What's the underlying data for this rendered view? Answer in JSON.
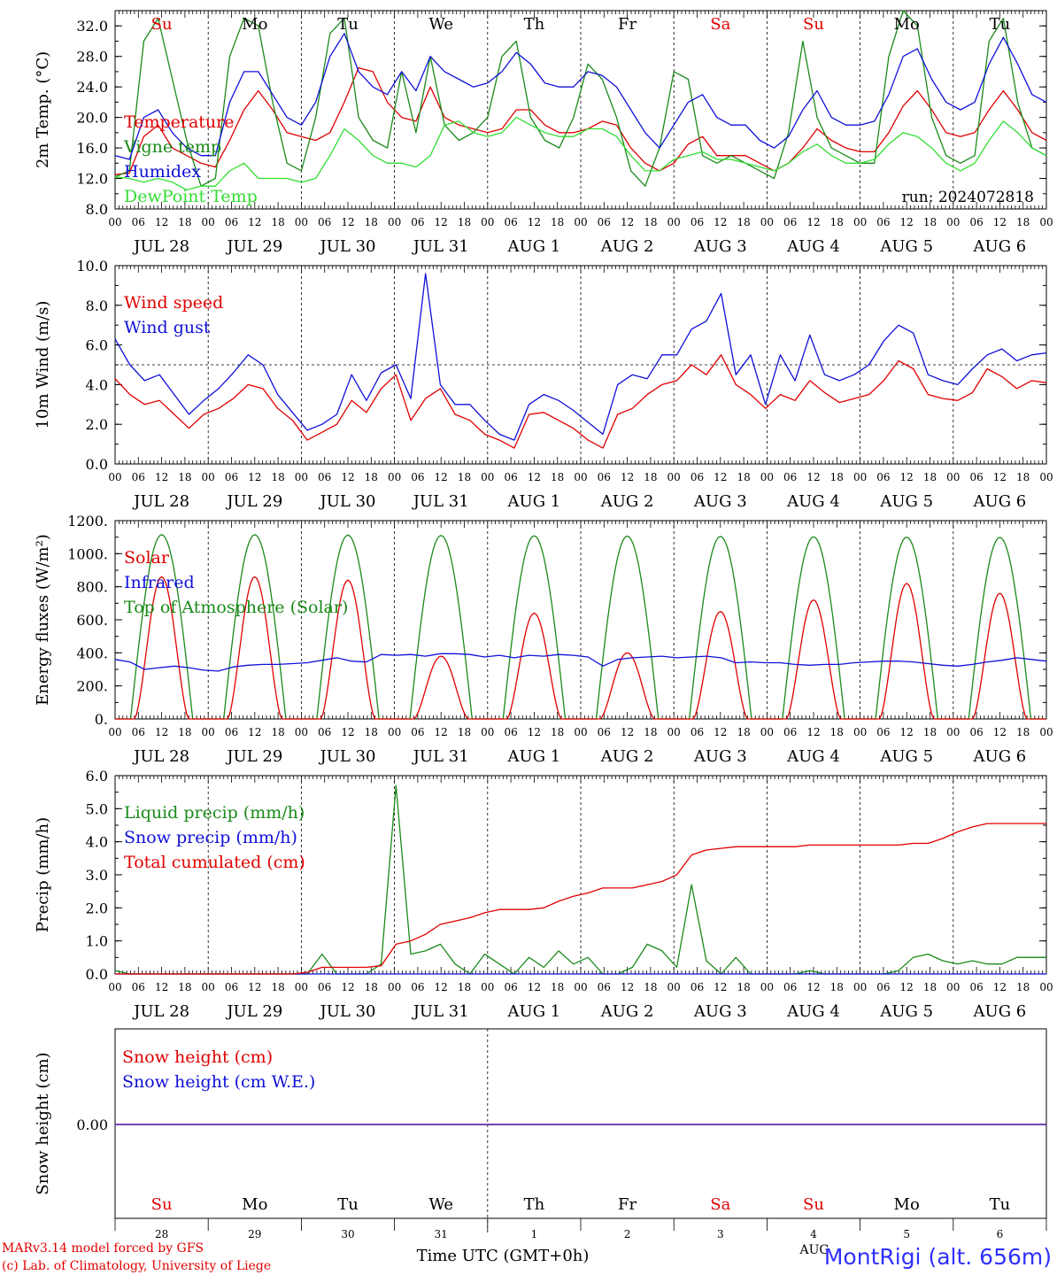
{
  "run_label": "run: 2024072818",
  "x_axis_title": "Time UTC (GMT+0h)",
  "hour_tick_labels": [
    "00",
    "06",
    "12",
    "18"
  ],
  "final_hour_label": "00",
  "date_labels": [
    "JUL 28",
    "JUL 29",
    "JUL 30",
    "JUL 31",
    "AUG  1",
    "AUG  2",
    "AUG  3",
    "AUG  4",
    "AUG  5",
    "AUG  6"
  ],
  "weekdays": [
    {
      "label": "Su",
      "color": "#e00000"
    },
    {
      "label": "Mo",
      "color": "#000000"
    },
    {
      "label": "Tu",
      "color": "#000000"
    },
    {
      "label": "We",
      "color": "#000000"
    },
    {
      "label": "Th",
      "color": "#000000"
    },
    {
      "label": "Fr",
      "color": "#000000"
    },
    {
      "label": "Sa",
      "color": "#e00000"
    },
    {
      "label": "Su",
      "color": "#e00000"
    },
    {
      "label": "Mo",
      "color": "#000000"
    },
    {
      "label": "Tu",
      "color": "#000000"
    }
  ],
  "day_numbers": [
    "28",
    "29",
    "30",
    "31",
    "1",
    "2",
    "3",
    "4",
    "5",
    "6"
  ],
  "bottom_month_label": "AUG",
  "footer": {
    "credit_line1": "MARv3.14 model forced by GFS",
    "credit_line2": "(c) Lab. of Climatology, University of Liege",
    "station": "MontRigi (alt. 656m)"
  },
  "colors": {
    "red": "#e00000",
    "darkgreen": "#1a8a1a",
    "blue": "#1010d8",
    "lightgreen": "#33dd33",
    "purple": "#7a2a9a",
    "station": "#3030ff"
  },
  "chart_data": [
    {
      "type": "line",
      "ylabel": "2m Temp. (°C)",
      "ylim": [
        8,
        34
      ],
      "yticks": [
        "8.0",
        "12.0",
        "16.0",
        "20.0",
        "24.0",
        "28.0",
        "32.0"
      ],
      "ytick_values": [
        8,
        12,
        16,
        20,
        24,
        28,
        32
      ],
      "x": "hours since JUL 28 00 UTC, every 6 h",
      "legend": [
        "Temperature",
        "Vigne temp",
        "Humidex",
        "DewPoint Temp"
      ],
      "series": [
        {
          "name": "Temperature",
          "color": "red",
          "values": [
            12.5,
            12.7,
            17.5,
            19,
            16,
            15,
            14,
            13.5,
            17,
            21,
            23.5,
            21,
            18,
            17.5,
            17,
            18,
            22,
            26.5,
            26,
            22,
            20,
            19.5,
            24,
            20,
            19,
            18.5,
            18,
            18.5,
            21,
            21,
            19,
            18,
            18,
            18.5,
            19.5,
            19,
            16,
            14,
            13,
            14,
            16.5,
            17.5,
            15,
            15,
            15,
            14,
            13,
            14,
            16,
            18.5,
            17,
            16,
            15.5,
            15.5,
            18,
            21.5,
            23.5,
            21,
            18,
            17.5,
            18,
            21,
            23.5,
            21,
            18,
            17
          ]
        },
        {
          "name": "Vigne temp",
          "color": "darkgreen",
          "values": [
            12.2,
            13,
            30,
            33,
            25,
            17,
            11,
            12,
            28,
            33,
            32,
            22,
            14,
            13,
            20,
            31,
            33,
            20,
            17,
            16,
            26,
            18,
            28,
            19,
            17,
            18,
            20,
            28,
            30,
            20,
            17,
            16,
            20,
            27,
            25,
            20,
            13,
            11,
            16,
            26,
            25,
            15,
            14,
            15,
            14,
            13,
            12,
            18,
            30,
            20,
            16,
            15,
            14,
            14,
            28,
            34,
            32,
            20,
            15,
            14,
            15,
            30,
            33,
            22,
            16,
            15
          ]
        },
        {
          "name": "Humidex",
          "color": "blue",
          "values": [
            15,
            14.5,
            20,
            21,
            18,
            16,
            15,
            15,
            22,
            26,
            26,
            23,
            20,
            19,
            22,
            28,
            31,
            26,
            24,
            23,
            26,
            23.5,
            28,
            26,
            25,
            24,
            24.5,
            26,
            28.5,
            27,
            24.5,
            24,
            24,
            26,
            25.5,
            24,
            21,
            18,
            16,
            19,
            22,
            23,
            20,
            19,
            19,
            17,
            16,
            17.5,
            21,
            23.5,
            20,
            19,
            19,
            19.5,
            23,
            28,
            29,
            25,
            22,
            21,
            22,
            27,
            30.5,
            27,
            23,
            22
          ]
        },
        {
          "name": "DewPoint Temp",
          "color": "lightgreen",
          "values": [
            12.2,
            12,
            11.5,
            12,
            11.5,
            10.5,
            11,
            11,
            13,
            14,
            12,
            12,
            12,
            11.5,
            12,
            15,
            18.5,
            17,
            15,
            14,
            14,
            13.5,
            15,
            19,
            19.5,
            18,
            17.5,
            18,
            20,
            19,
            18,
            17.5,
            17.5,
            18.5,
            18.5,
            17.5,
            15,
            13,
            13,
            14.5,
            15,
            15.5,
            14.5,
            14.5,
            14,
            13.5,
            13,
            14,
            15.5,
            16.5,
            15,
            14,
            14,
            14.5,
            16.5,
            18,
            17.5,
            16,
            14,
            13,
            14,
            17,
            19.5,
            18,
            16,
            15
          ]
        }
      ]
    },
    {
      "type": "line",
      "ylabel": "10m Wind (m/s)",
      "ylim": [
        0,
        10
      ],
      "yticks": [
        "0.0",
        "2.0",
        "4.0",
        "6.0",
        "8.0",
        "10.0"
      ],
      "ytick_values": [
        0,
        2,
        4,
        6,
        8,
        10
      ],
      "reference_line": 5,
      "legend": [
        "Wind speed",
        "Wind gust"
      ],
      "series": [
        {
          "name": "Wind speed",
          "color": "red",
          "values": [
            4.3,
            3.5,
            3,
            3.2,
            2.5,
            1.8,
            2.5,
            2.8,
            3.3,
            4,
            3.8,
            2.8,
            2.2,
            1.2,
            1.6,
            2,
            3.2,
            2.6,
            3.8,
            4.5,
            2.2,
            3.3,
            3.8,
            2.5,
            2.2,
            1.5,
            1.2,
            0.8,
            2.5,
            2.6,
            2.2,
            1.8,
            1.2,
            0.8,
            2.5,
            2.8,
            3.5,
            4,
            4.2,
            5,
            4.5,
            5.5,
            4,
            3.5,
            2.8,
            3.5,
            3.2,
            4.2,
            3.6,
            3.1,
            3.3,
            3.5,
            4.2,
            5.2,
            4.8,
            3.5,
            3.3,
            3.2,
            3.6,
            4.8,
            4.4,
            3.8,
            4.2,
            4.1
          ]
        },
        {
          "name": "Wind gust",
          "color": "blue",
          "values": [
            6.3,
            5,
            4.2,
            4.5,
            3.5,
            2.5,
            3.2,
            3.8,
            4.6,
            5.5,
            5,
            3.5,
            2.6,
            1.7,
            2,
            2.5,
            4.5,
            3.2,
            4.6,
            5,
            3.3,
            9.6,
            4,
            3,
            3,
            2.2,
            1.5,
            1.2,
            3,
            3.5,
            3.2,
            2.7,
            2.1,
            1.5,
            4,
            4.5,
            4.3,
            5.5,
            5.5,
            6.8,
            7.2,
            8.6,
            4.5,
            5.5,
            3,
            5.5,
            4.2,
            6.5,
            4.5,
            4.2,
            4.5,
            5,
            6.2,
            7,
            6.6,
            4.5,
            4.2,
            4,
            4.8,
            5.5,
            5.8,
            5.2,
            5.5,
            5.6
          ]
        }
      ]
    },
    {
      "type": "line",
      "ylabel": "Energy fluxes (W/m²)",
      "ylim": [
        0,
        1200
      ],
      "yticks": [
        "0.",
        "200.",
        "400.",
        "600.",
        "800.",
        "1000.",
        "1200."
      ],
      "ytick_values": [
        0,
        200,
        400,
        600,
        800,
        1000,
        1200
      ],
      "legend": [
        "Solar",
        "Infrared",
        "Top of Atmosphere (Solar)"
      ],
      "daily_peaks": {
        "Top of Atmosphere (Solar)": [
          1115,
          1115,
          1112,
          1110,
          1108,
          1106,
          1104,
          1102,
          1100,
          1098
        ],
        "Solar": [
          860,
          860,
          840,
          380,
          640,
          400,
          650,
          720,
          820,
          760
        ]
      },
      "series": [
        {
          "name": "Solar",
          "color": "red"
        },
        {
          "name": "Infrared",
          "color": "blue",
          "values": [
            360,
            345,
            300,
            310,
            320,
            310,
            295,
            290,
            315,
            325,
            330,
            330,
            335,
            340,
            355,
            370,
            350,
            345,
            390,
            385,
            390,
            380,
            395,
            395,
            390,
            375,
            385,
            370,
            385,
            380,
            390,
            385,
            375,
            320,
            360,
            370,
            375,
            380,
            370,
            375,
            380,
            370,
            340,
            345,
            340,
            340,
            330,
            325,
            330,
            330,
            340,
            345,
            350,
            350,
            345,
            335,
            325,
            320,
            330,
            345,
            355,
            370,
            360,
            350
          ]
        },
        {
          "name": "Top of Atmosphere (Solar)",
          "color": "darkgreen"
        }
      ]
    },
    {
      "type": "line",
      "ylabel": "Precip (mm/h)",
      "ylim": [
        0,
        6
      ],
      "yticks": [
        "0.0",
        "1.0",
        "2.0",
        "3.0",
        "4.0",
        "5.0",
        "6.0"
      ],
      "ytick_values": [
        0,
        1,
        2,
        3,
        4,
        5,
        6
      ],
      "legend": [
        "Liquid precip (mm/h)",
        "Snow precip (mm/h)",
        "Total cumulated (cm)"
      ],
      "series": [
        {
          "name": "Liquid precip (mm/h)",
          "color": "darkgreen",
          "values": [
            0.1,
            0,
            0,
            0,
            0,
            0,
            0,
            0,
            0,
            0,
            0,
            0,
            0,
            0,
            0.6,
            0,
            0,
            0,
            0.3,
            5.7,
            0.6,
            0.7,
            0.9,
            0.3,
            0,
            0.6,
            0.3,
            0,
            0.5,
            0.2,
            0.7,
            0.3,
            0.5,
            0,
            0,
            0.2,
            0.9,
            0.7,
            0.2,
            2.7,
            0.4,
            0,
            0.5,
            0,
            0,
            0,
            0,
            0.1,
            0,
            0,
            0,
            0,
            0,
            0.1,
            0.5,
            0.6,
            0.4,
            0.3,
            0.4,
            0.3,
            0.3,
            0.5,
            0.5,
            0.5
          ]
        },
        {
          "name": "Snow precip (mm/h)",
          "color": "blue",
          "values": [
            0,
            0,
            0,
            0,
            0,
            0,
            0,
            0,
            0,
            0,
            0,
            0,
            0,
            0,
            0,
            0,
            0,
            0,
            0,
            0,
            0,
            0,
            0,
            0,
            0,
            0,
            0,
            0,
            0,
            0,
            0,
            0,
            0,
            0,
            0,
            0,
            0,
            0,
            0,
            0,
            0,
            0,
            0,
            0,
            0,
            0,
            0,
            0,
            0,
            0,
            0,
            0,
            0,
            0,
            0,
            0,
            0,
            0,
            0,
            0,
            0,
            0,
            0,
            0
          ]
        },
        {
          "name": "Total cumulated (cm)",
          "color": "red",
          "values": [
            0,
            0,
            0,
            0,
            0,
            0,
            0,
            0,
            0,
            0,
            0,
            0,
            0,
            0.05,
            0.2,
            0.2,
            0.2,
            0.2,
            0.25,
            0.9,
            1,
            1.2,
            1.5,
            1.6,
            1.7,
            1.85,
            1.95,
            1.95,
            1.95,
            2,
            2.2,
            2.35,
            2.45,
            2.6,
            2.6,
            2.6,
            2.7,
            2.8,
            3,
            3.6,
            3.75,
            3.8,
            3.85,
            3.85,
            3.85,
            3.85,
            3.85,
            3.9,
            3.9,
            3.9,
            3.9,
            3.9,
            3.9,
            3.9,
            3.95,
            3.95,
            4.1,
            4.3,
            4.45,
            4.55,
            4.55,
            4.55,
            4.55,
            4.55
          ]
        }
      ]
    },
    {
      "type": "line",
      "ylabel": "Snow height (cm)",
      "yticks": [
        "0.00"
      ],
      "legend": [
        "Snow height (cm)",
        "Snow height (cm W.E.)"
      ],
      "series": [
        {
          "name": "Snow height (cm)",
          "color": "red",
          "values": [
            0,
            0
          ]
        },
        {
          "name": "Snow height (cm W.E.)",
          "color": "blue",
          "values": [
            0,
            0
          ]
        }
      ]
    }
  ]
}
